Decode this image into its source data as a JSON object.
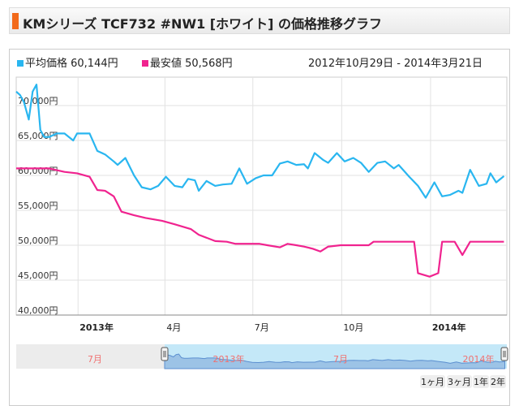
{
  "header": {
    "title": "KMシリーズ TCF732 #NW1 [ホワイト] の価格推移グラフ"
  },
  "legend": {
    "avg_label": "平均価格 60,144円",
    "min_label": "最安値 50,568円",
    "date_range": "2012年10月29日 - 2014年3月21日"
  },
  "colors": {
    "avg": "#29b6f0",
    "min": "#f0238f",
    "accent": "#f26a1b"
  },
  "range_buttons": [
    "1ヶ月",
    "3ヶ月",
    "1年",
    "2年"
  ],
  "navigator": {
    "labels": [
      "7月",
      "2013年",
      "7月",
      "2014年"
    ]
  },
  "chart_data": {
    "type": "line",
    "x_unit": "days since 2012-10-29",
    "xlim": [
      0,
      508
    ],
    "ylim": [
      40000,
      74000
    ],
    "yticks": [
      40000,
      45000,
      50000,
      55000,
      60000,
      65000,
      70000
    ],
    "ytick_labels": [
      "40,000円",
      "45,000円",
      "50,000円",
      "55,000円",
      "60,000円",
      "65,000円",
      "70,000円"
    ],
    "xticks": [
      {
        "day": 64,
        "label": "2013年",
        "bold": true
      },
      {
        "day": 154,
        "label": "4月"
      },
      {
        "day": 245,
        "label": "7月"
      },
      {
        "day": 337,
        "label": "10月"
      },
      {
        "day": 429,
        "label": "2014年",
        "bold": true
      }
    ],
    "series": [
      {
        "name": "平均価格",
        "color": "#29b6f0",
        "points": [
          [
            0,
            72000
          ],
          [
            4,
            71500
          ],
          [
            8,
            70500
          ],
          [
            13,
            68000
          ],
          [
            17,
            72000
          ],
          [
            21,
            73000
          ],
          [
            25,
            66500
          ],
          [
            29,
            65500
          ],
          [
            34,
            65500
          ],
          [
            42,
            66000
          ],
          [
            50,
            66000
          ],
          [
            59,
            65000
          ],
          [
            63,
            66000
          ],
          [
            76,
            66000
          ],
          [
            84,
            63500
          ],
          [
            92,
            63000
          ],
          [
            101,
            62000
          ],
          [
            105,
            61500
          ],
          [
            113,
            62500
          ],
          [
            122,
            60000
          ],
          [
            130,
            58300
          ],
          [
            139,
            58000
          ],
          [
            147,
            58500
          ],
          [
            155,
            59800
          ],
          [
            164,
            58500
          ],
          [
            172,
            58300
          ],
          [
            178,
            59500
          ],
          [
            185,
            59300
          ],
          [
            189,
            57800
          ],
          [
            197,
            59200
          ],
          [
            206,
            58500
          ],
          [
            214,
            58700
          ],
          [
            223,
            58800
          ],
          [
            231,
            61000
          ],
          [
            239,
            58800
          ],
          [
            248,
            59600
          ],
          [
            256,
            60000
          ],
          [
            265,
            60000
          ],
          [
            273,
            61700
          ],
          [
            281,
            62000
          ],
          [
            290,
            61500
          ],
          [
            298,
            61600
          ],
          [
            302,
            61000
          ],
          [
            309,
            63200
          ],
          [
            318,
            62200
          ],
          [
            323,
            61800
          ],
          [
            332,
            63200
          ],
          [
            340,
            62000
          ],
          [
            349,
            62500
          ],
          [
            357,
            61800
          ],
          [
            365,
            60500
          ],
          [
            374,
            61800
          ],
          [
            382,
            62000
          ],
          [
            391,
            61000
          ],
          [
            396,
            61500
          ],
          [
            407,
            59800
          ],
          [
            416,
            58500
          ],
          [
            424,
            56800
          ],
          [
            433,
            59000
          ],
          [
            441,
            57000
          ],
          [
            449,
            57200
          ],
          [
            458,
            57800
          ],
          [
            462,
            57500
          ],
          [
            470,
            60800
          ],
          [
            479,
            58500
          ],
          [
            487,
            58800
          ],
          [
            491,
            60300
          ],
          [
            497,
            59000
          ],
          [
            505,
            59900
          ]
        ]
      },
      {
        "name": "最安値",
        "color": "#f0238f",
        "points": [
          [
            0,
            61000
          ],
          [
            34,
            61000
          ],
          [
            50,
            60500
          ],
          [
            63,
            60300
          ],
          [
            76,
            59800
          ],
          [
            84,
            57900
          ],
          [
            92,
            57800
          ],
          [
            101,
            57000
          ],
          [
            109,
            54800
          ],
          [
            122,
            54300
          ],
          [
            134,
            53900
          ],
          [
            151,
            53500
          ],
          [
            164,
            53000
          ],
          [
            181,
            52300
          ],
          [
            189,
            51500
          ],
          [
            206,
            50600
          ],
          [
            218,
            50500
          ],
          [
            227,
            50200
          ],
          [
            252,
            50200
          ],
          [
            260,
            50000
          ],
          [
            273,
            49700
          ],
          [
            281,
            50200
          ],
          [
            290,
            50000
          ],
          [
            298,
            49800
          ],
          [
            307,
            49500
          ],
          [
            315,
            49100
          ],
          [
            323,
            49800
          ],
          [
            336,
            50000
          ],
          [
            365,
            50000
          ],
          [
            370,
            50500
          ],
          [
            412,
            50500
          ],
          [
            416,
            46000
          ],
          [
            428,
            45500
          ],
          [
            437,
            46000
          ],
          [
            441,
            50500
          ],
          [
            454,
            50500
          ],
          [
            462,
            48600
          ],
          [
            470,
            50500
          ],
          [
            505,
            50500
          ]
        ]
      }
    ]
  }
}
